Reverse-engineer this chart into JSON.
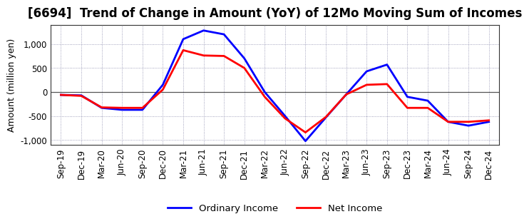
{
  "title": "[6694]  Trend of Change in Amount (YoY) of 12Mo Moving Sum of Incomes",
  "ylabel": "Amount (million yen)",
  "x_labels": [
    "Sep-19",
    "Dec-19",
    "Mar-20",
    "Jun-20",
    "Sep-20",
    "Dec-20",
    "Mar-21",
    "Jun-21",
    "Sep-21",
    "Dec-21",
    "Mar-22",
    "Jun-22",
    "Sep-22",
    "Dec-22",
    "Mar-23",
    "Jun-23",
    "Sep-23",
    "Dec-23",
    "Mar-24",
    "Jun-24",
    "Sep-24",
    "Dec-24"
  ],
  "ordinary_income": [
    -60,
    -70,
    -330,
    -370,
    -370,
    150,
    1100,
    1280,
    1200,
    700,
    0,
    -500,
    -1020,
    -530,
    -50,
    430,
    570,
    -100,
    -180,
    -620,
    -700,
    -620
  ],
  "net_income": [
    -60,
    -80,
    -320,
    -330,
    -330,
    50,
    870,
    760,
    750,
    500,
    -100,
    -550,
    -840,
    -520,
    -50,
    150,
    165,
    -330,
    -330,
    -620,
    -620,
    -590
  ],
  "ordinary_color": "#0000FF",
  "net_color": "#FF0000",
  "ylim": [
    -1100,
    1400
  ],
  "yticks": [
    -1000,
    -500,
    0,
    500,
    1000
  ],
  "legend_labels": [
    "Ordinary Income",
    "Net Income"
  ],
  "line_width": 2.0,
  "background_color": "#ffffff",
  "grid_color": "#8888aa",
  "title_fontsize": 12,
  "axis_fontsize": 9,
  "tick_fontsize": 8.5
}
